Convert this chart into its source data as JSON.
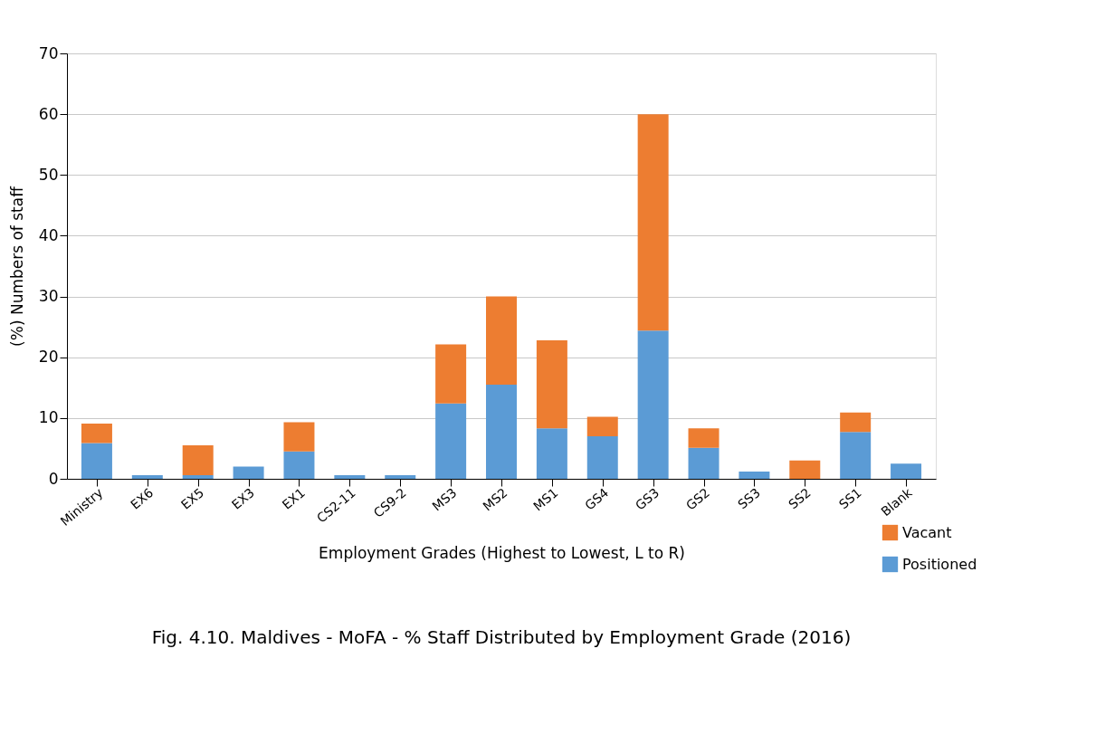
{
  "chart_data": {
    "type": "bar",
    "stacked": true,
    "title": "Fig. 4.10. Maldives - MoFA - % Staff Distributed by Employment Grade (2016)",
    "xlabel": "Employment Grades (Highest to Lowest, L to R)",
    "ylabel": "(%) Numbers of staff",
    "categories": [
      "Ministry",
      "EX6",
      "EX5",
      "EX3",
      "EX1",
      "CS2-11",
      "CS9-2",
      "MS3",
      "MS2",
      "MS1",
      "GS4",
      "GS3",
      "GS2",
      "SS3",
      "SS2",
      "SS1",
      "Blank"
    ],
    "series": [
      {
        "name": "Positioned",
        "color": "#5b9bd5",
        "values": [
          5.9,
          0.6,
          0.6,
          2.0,
          4.5,
          0.6,
          0.6,
          12.4,
          15.5,
          8.3,
          7.0,
          24.4,
          5.1,
          1.2,
          0,
          7.7,
          2.5
        ]
      },
      {
        "name": "Vacant",
        "color": "#ed7d31",
        "values": [
          3.2,
          0,
          4.9,
          0,
          4.8,
          0,
          0,
          9.7,
          14.5,
          14.5,
          3.2,
          35.6,
          3.2,
          0,
          3.0,
          3.2,
          0
        ]
      }
    ],
    "ylim": [
      0,
      70
    ],
    "yticks": [
      0,
      10,
      20,
      30,
      40,
      50,
      60,
      70
    ],
    "grid": "y",
    "legend": "bottom right"
  }
}
